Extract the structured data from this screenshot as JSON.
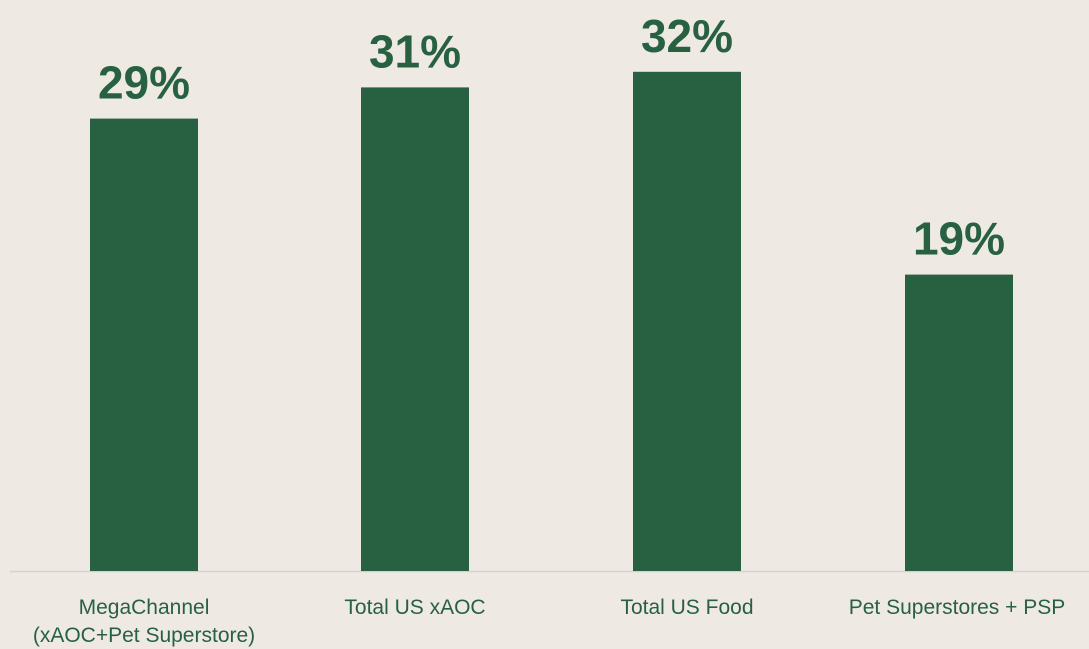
{
  "chart_data": {
    "type": "bar",
    "categories": [
      "MegaChannel\n(xAOC+Pet Superstore)",
      "Total US xAOC",
      "Total US Food",
      "Pet Superstores + PSP"
    ],
    "values": [
      29,
      31,
      32,
      19
    ],
    "value_labels": [
      "29%",
      "31%",
      "32%",
      "19%"
    ],
    "color": "#276142"
  }
}
